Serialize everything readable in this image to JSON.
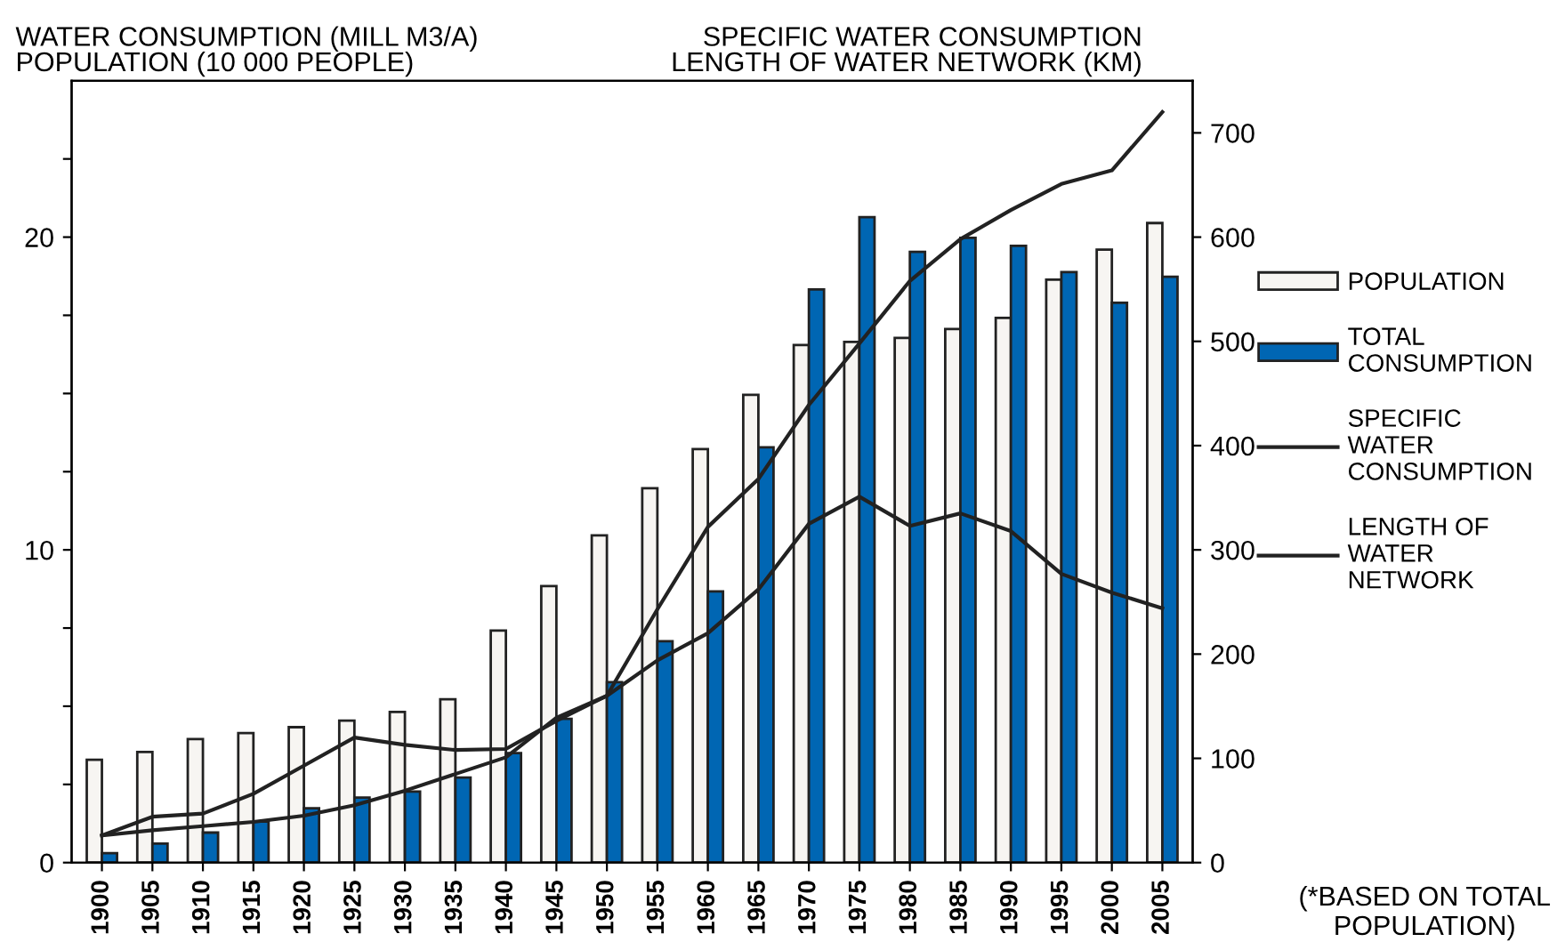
{
  "chart_data": {
    "type": "bar",
    "ylabel": "WATER CONSUMPTION (MILL M3/A)\nPOPULATION (10 000 PEOPLE)",
    "y2label": "SPECIFIC WATER CONSUMPTION\nLENGTH OF WATER NETWORK (KM)",
    "categories": [
      "1900",
      "1905",
      "1910",
      "1915",
      "1920",
      "1925",
      "1930",
      "1935",
      "1940",
      "1945",
      "1950",
      "1955",
      "1960",
      "1965",
      "1970",
      "1975",
      "1980",
      "1985",
      "1990",
      "1995",
      "2000",
      "2005"
    ],
    "series": [
      {
        "name": "POPULATION",
        "color": "#f7f5f2",
        "values": [
          3.29,
          3.54,
          3.95,
          4.14,
          4.33,
          4.54,
          4.82,
          5.22,
          7.42,
          8.84,
          10.46,
          11.97,
          13.22,
          14.96,
          16.55,
          16.65,
          16.78,
          17.06,
          17.42,
          18.64,
          19.6,
          20.45
        ]
      },
      {
        "name": "TOTAL\nCONSUMPTION",
        "color": "#0066b3",
        "values": [
          0.3,
          0.61,
          0.96,
          1.31,
          1.74,
          2.08,
          2.27,
          2.72,
          3.5,
          4.6,
          5.77,
          7.08,
          8.67,
          13.28,
          18.33,
          20.64,
          19.53,
          19.98,
          19.72,
          18.88,
          17.9,
          18.73
        ]
      },
      {
        "name": "SPECIFIC\nWATER\nCONSUMPTION",
        "type": "line",
        "axis": "y2",
        "color": "#222222",
        "values": [
          26,
          44,
          47,
          66,
          93,
          120,
          113,
          108,
          109,
          136,
          160,
          194,
          220,
          262,
          325,
          351,
          323,
          335,
          318,
          277,
          259,
          244
        ]
      },
      {
        "name": "LENGTH OF\nWATER\nNETWORK",
        "type": "line",
        "axis": "y2",
        "color": "#222222",
        "values": [
          26,
          31,
          35,
          39,
          45,
          55,
          69,
          85,
          101,
          139,
          160,
          243,
          322,
          368,
          439,
          498,
          558,
          598,
          626,
          651,
          664,
          720
        ]
      }
    ],
    "ylim": [
      0,
      25
    ],
    "yticks": [
      0,
      {
        "value": 2.5,
        "label": null
      },
      {
        "value": 5,
        "label": null
      },
      {
        "value": 7.5,
        "label": null
      },
      10,
      {
        "value": 12.5,
        "label": null
      },
      {
        "value": 15,
        "label": null
      },
      {
        "value": 17.5,
        "label": null
      },
      20,
      {
        "value": 22.5,
        "label": null
      }
    ],
    "y2lim": [
      0,
      750
    ],
    "y2ticks": [
      0,
      100,
      200,
      300,
      400,
      500,
      600,
      700
    ],
    "annotations": [
      "(*BASED ON TOTAL\nPOPULATION)"
    ],
    "legend": "right",
    "grid": false,
    "marker": "none",
    "line_style": "solid"
  }
}
